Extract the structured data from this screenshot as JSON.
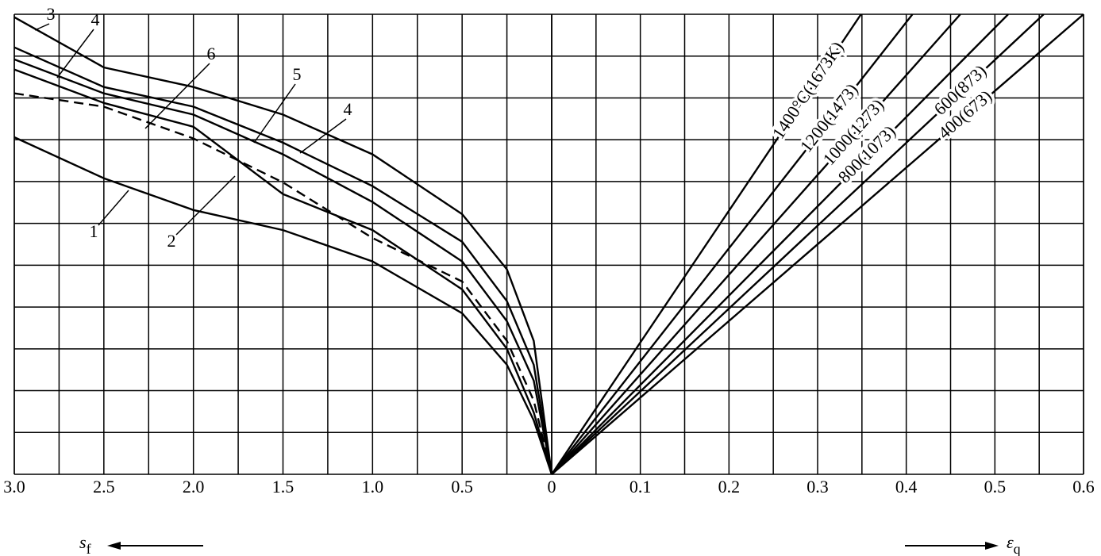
{
  "chart_data": [
    {
      "type": "line",
      "xlim": [
        3,
        0
      ],
      "ylim": [
        0,
        11
      ],
      "xticks": [
        {
          "value": 3,
          "label": "3.0"
        },
        2.5,
        {
          "value": 2,
          "label": "2.0"
        },
        1.5,
        {
          "value": 1,
          "label": "1.0"
        },
        0.5
      ],
      "xlabel": "s",
      "xlabel_sub": "f",
      "grid": true,
      "x": [
        3,
        2.5,
        2,
        1.5,
        1,
        0.5,
        0.25,
        0.1,
        0
      ],
      "series": [
        {
          "name": "1",
          "color": "#000000",
          "dashed": false,
          "values": [
            8.06,
            7.08,
            6.32,
            5.84,
            5.09,
            3.85,
            2.62,
            1.29,
            0
          ]
        },
        {
          "name": "2",
          "color": "#000000",
          "dashed": false,
          "values": [
            9.68,
            8.88,
            8.31,
            6.7,
            5.84,
            4.42,
            3.0,
            1.48,
            0
          ]
        },
        {
          "name": "3",
          "color": "#000000",
          "dashed": false,
          "values": [
            10.93,
            9.73,
            9.26,
            8.6,
            7.65,
            6.22,
            4.9,
            3.19,
            0
          ]
        },
        {
          "name": "4",
          "color": "#000000",
          "dashed": false,
          "values": [
            10.21,
            9.26,
            8.79,
            7.93,
            6.89,
            5.56,
            4.14,
            2.62,
            0
          ]
        },
        {
          "name": "5",
          "color": "#000000",
          "dashed": false,
          "values": [
            9.92,
            9.11,
            8.6,
            7.65,
            6.51,
            5.09,
            3.66,
            2.24,
            0
          ]
        },
        {
          "name": "6",
          "color": "#000000",
          "dashed": true,
          "values": [
            9.11,
            8.79,
            8.03,
            6.98,
            5.65,
            4.61,
            3.19,
            1.76,
            0
          ]
        }
      ]
    },
    {
      "type": "line",
      "xlim": [
        0,
        0.6
      ],
      "ylim": [
        0,
        11
      ],
      "xticks": [
        0,
        0.1,
        0.2,
        0.3,
        0.4,
        0.5,
        0.6
      ],
      "xlabel": "ε",
      "xlabel_sub": "q",
      "grid": true,
      "series": [
        {
          "name": "1400°C(1673K)",
          "color": "#000000",
          "x": [
            0,
            0.349
          ],
          "values": [
            0,
            11
          ]
        },
        {
          "name": "1200(1473)",
          "color": "#000000",
          "x": [
            0,
            0.407
          ],
          "values": [
            0,
            11
          ]
        },
        {
          "name": "1000(1273)",
          "color": "#000000",
          "x": [
            0,
            0.461
          ],
          "values": [
            0,
            11
          ]
        },
        {
          "name": "800(1073)",
          "color": "#000000",
          "x": [
            0,
            0.515
          ],
          "values": [
            0,
            11
          ]
        },
        {
          "name": "600(873)",
          "color": "#000000",
          "x": [
            0,
            0.555
          ],
          "values": [
            0,
            11
          ]
        },
        {
          "name": "400(673)",
          "color": "#000000",
          "x": [
            0,
            0.6
          ],
          "values": [
            0,
            11
          ]
        }
      ]
    }
  ]
}
